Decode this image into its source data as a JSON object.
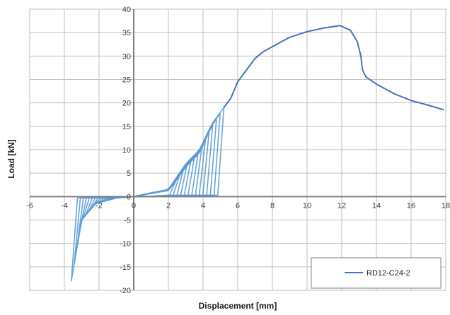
{
  "chart_data": {
    "type": "line",
    "title": "",
    "xlabel": "Displacement [mm]",
    "ylabel": "Load [kN]",
    "xlim": [
      -6,
      18
    ],
    "ylim": [
      -20,
      40
    ],
    "x_ticks": [
      -6,
      -4,
      -2,
      0,
      2,
      4,
      6,
      8,
      10,
      12,
      14,
      16,
      18
    ],
    "x_tick_labels": [
      "-6",
      "-4",
      "-2",
      "0",
      "2",
      "4",
      "6",
      "8",
      "10",
      "12",
      "14",
      "16",
      "18"
    ],
    "y_ticks": [
      -20,
      -15,
      -10,
      -5,
      0,
      5,
      10,
      15,
      20,
      25,
      30,
      35,
      40
    ],
    "y_tick_labels": [
      "-20",
      "-15",
      "-10",
      "-5",
      "0",
      "5",
      "10",
      "15",
      "20",
      "25",
      "30",
      "35",
      "40"
    ],
    "grid": true,
    "legend_position": "bottom-right",
    "series": [
      {
        "name": "RD12-C24-2",
        "color": "#4472C4",
        "cyclic_color": "#5B9BD5",
        "cycle_count": 14,
        "cyclic_envelope": [
          [
            -3.6,
            -18.0
          ],
          [
            -3.0,
            -5.0
          ],
          [
            -2.2,
            -1.5
          ],
          [
            -1.0,
            -0.3
          ],
          [
            0,
            0
          ],
          [
            1.0,
            0.8
          ],
          [
            2.0,
            1.5
          ],
          [
            3.0,
            7.0
          ],
          [
            3.8,
            10.0
          ],
          [
            4.5,
            15.5
          ],
          [
            5.2,
            19.0
          ]
        ],
        "monotonic_tail": [
          [
            5.2,
            19.0
          ],
          [
            5.6,
            21.0
          ],
          [
            6.0,
            24.5
          ],
          [
            6.6,
            27.5
          ],
          [
            7.0,
            29.5
          ],
          [
            7.5,
            31.0
          ],
          [
            8.0,
            32.0
          ],
          [
            8.5,
            33.0
          ],
          [
            9.0,
            34.0
          ],
          [
            10.0,
            35.2
          ],
          [
            11.0,
            36.0
          ],
          [
            11.9,
            36.5
          ],
          [
            12.5,
            35.5
          ],
          [
            12.9,
            33.0
          ],
          [
            13.1,
            30.0
          ],
          [
            13.2,
            27.0
          ],
          [
            13.4,
            25.5
          ],
          [
            14.0,
            24.0
          ],
          [
            15.0,
            22.0
          ],
          [
            16.0,
            20.5
          ],
          [
            17.0,
            19.5
          ],
          [
            17.9,
            18.5
          ]
        ]
      }
    ]
  }
}
